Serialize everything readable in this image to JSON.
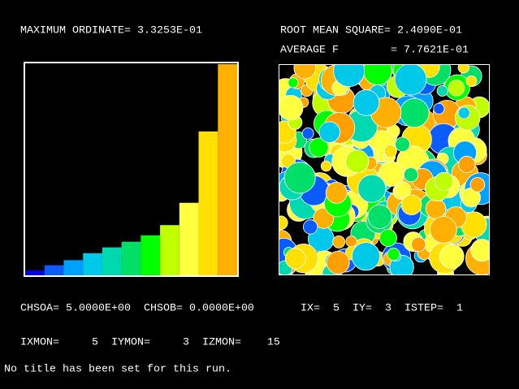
{
  "header": {
    "max_ordinate": "MAXIMUM ORDINATE= 3.3253E-01",
    "rms": "ROOT MEAN SQUARE= 2.4090E-01",
    "average": "AVERAGE F        = 7.7621E-01"
  },
  "histogram": {
    "type": "bar",
    "values": [
      0.009,
      0.017,
      0.025,
      0.036,
      0.045,
      0.054,
      0.064,
      0.08,
      0.115,
      0.227,
      0.33253
    ],
    "colors": [
      "#0000e8",
      "#0a5cff",
      "#00a0ff",
      "#00c8e8",
      "#00d8b0",
      "#00e068",
      "#00ff00",
      "#c0ff00",
      "#ffff40",
      "#ffe000",
      "#ffb000"
    ],
    "ylim": [
      0,
      0.33253
    ]
  },
  "status": {
    "chso": "CHSOA= 5.0000E+00  CHSOB= 0.0000E+00",
    "position": "IX=  5  IY=  3  ISTEP=  1",
    "monitor": "IXMON=     5  IYMON=     3  IZMON=    15",
    "title": "No title has been set for this run."
  }
}
